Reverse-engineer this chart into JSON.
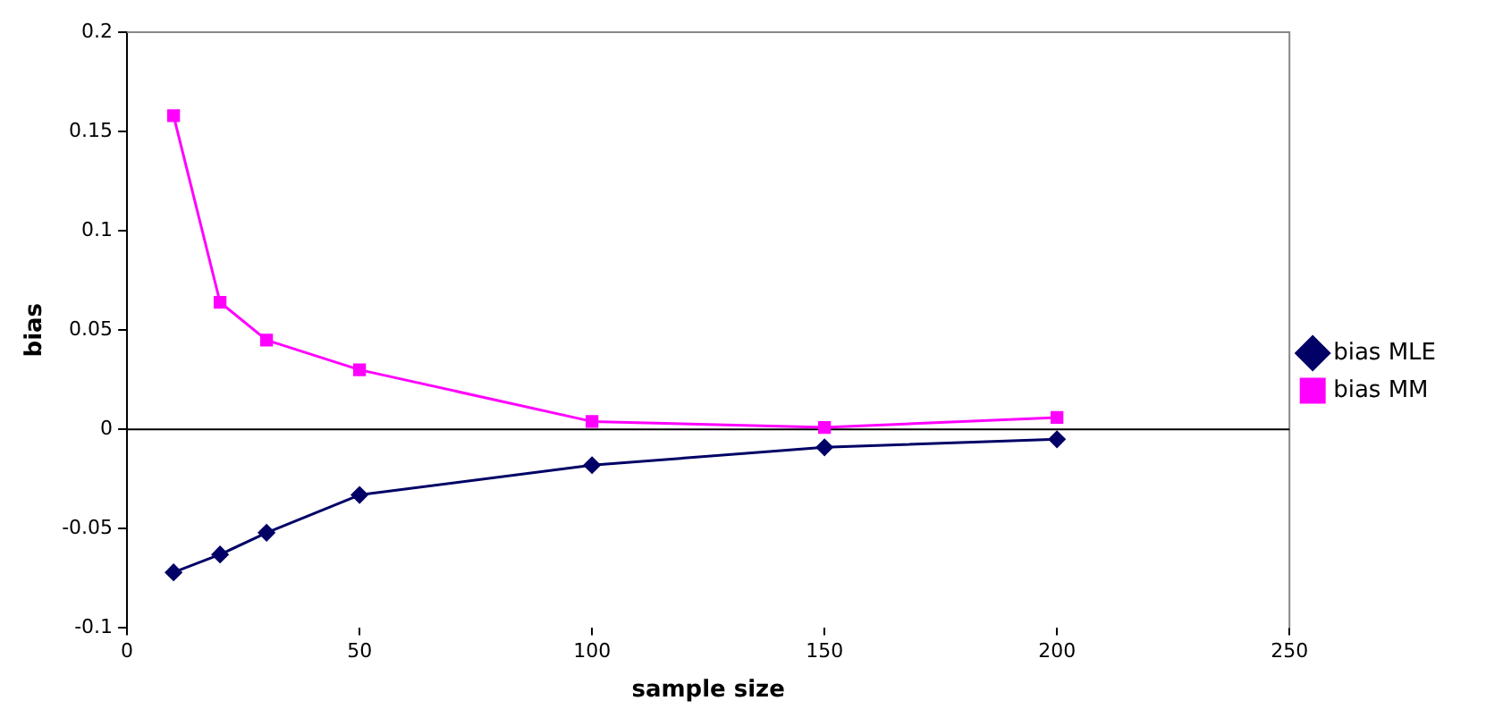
{
  "chart_data": {
    "type": "line",
    "xlabel": "sample size",
    "ylabel": "bias",
    "xlim": [
      0,
      250
    ],
    "xticks": [
      0,
      50,
      100,
      150,
      200,
      250
    ],
    "ylim": [
      -0.1,
      0.2
    ],
    "yticks": [
      -0.1,
      -0.05,
      0,
      0.05,
      0.1,
      0.15,
      0.2
    ],
    "x": [
      10,
      20,
      30,
      50,
      100,
      150,
      200
    ],
    "series": [
      {
        "name": "bias MLE",
        "color": "#000066",
        "marker": "diamond",
        "values": [
          -0.072,
          -0.063,
          -0.052,
          -0.033,
          -0.018,
          -0.009,
          -0.005
        ]
      },
      {
        "name": "bias MM",
        "color": "#ff00ff",
        "marker": "square",
        "values": [
          0.158,
          0.064,
          0.045,
          0.03,
          0.004,
          0.001,
          0.006
        ]
      }
    ],
    "ref_lines": [
      {
        "axis": "y",
        "value": 0,
        "color": "#000000"
      }
    ],
    "grid": false,
    "legend": "right"
  }
}
